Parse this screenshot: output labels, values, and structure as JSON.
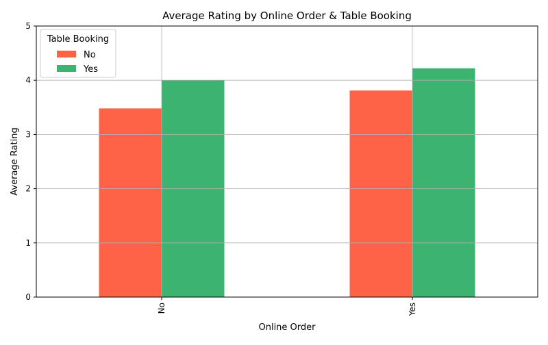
{
  "chart_data": {
    "type": "bar",
    "title": "Average Rating by Online Order & Table Booking",
    "xlabel": "Online Order",
    "ylabel": "Average Rating",
    "categories": [
      "No",
      "Yes"
    ],
    "series": [
      {
        "name": "No",
        "values": [
          3.48,
          3.81
        ],
        "color": "#ff6347"
      },
      {
        "name": "Yes",
        "values": [
          4.0,
          4.22
        ],
        "color": "#3cb371"
      }
    ],
    "ylim": [
      0,
      5
    ],
    "yticks": [
      "0",
      "1",
      "2",
      "3",
      "4",
      "5"
    ],
    "grid": true,
    "legend": {
      "title": "Table Booking",
      "placement": "top-left"
    }
  }
}
